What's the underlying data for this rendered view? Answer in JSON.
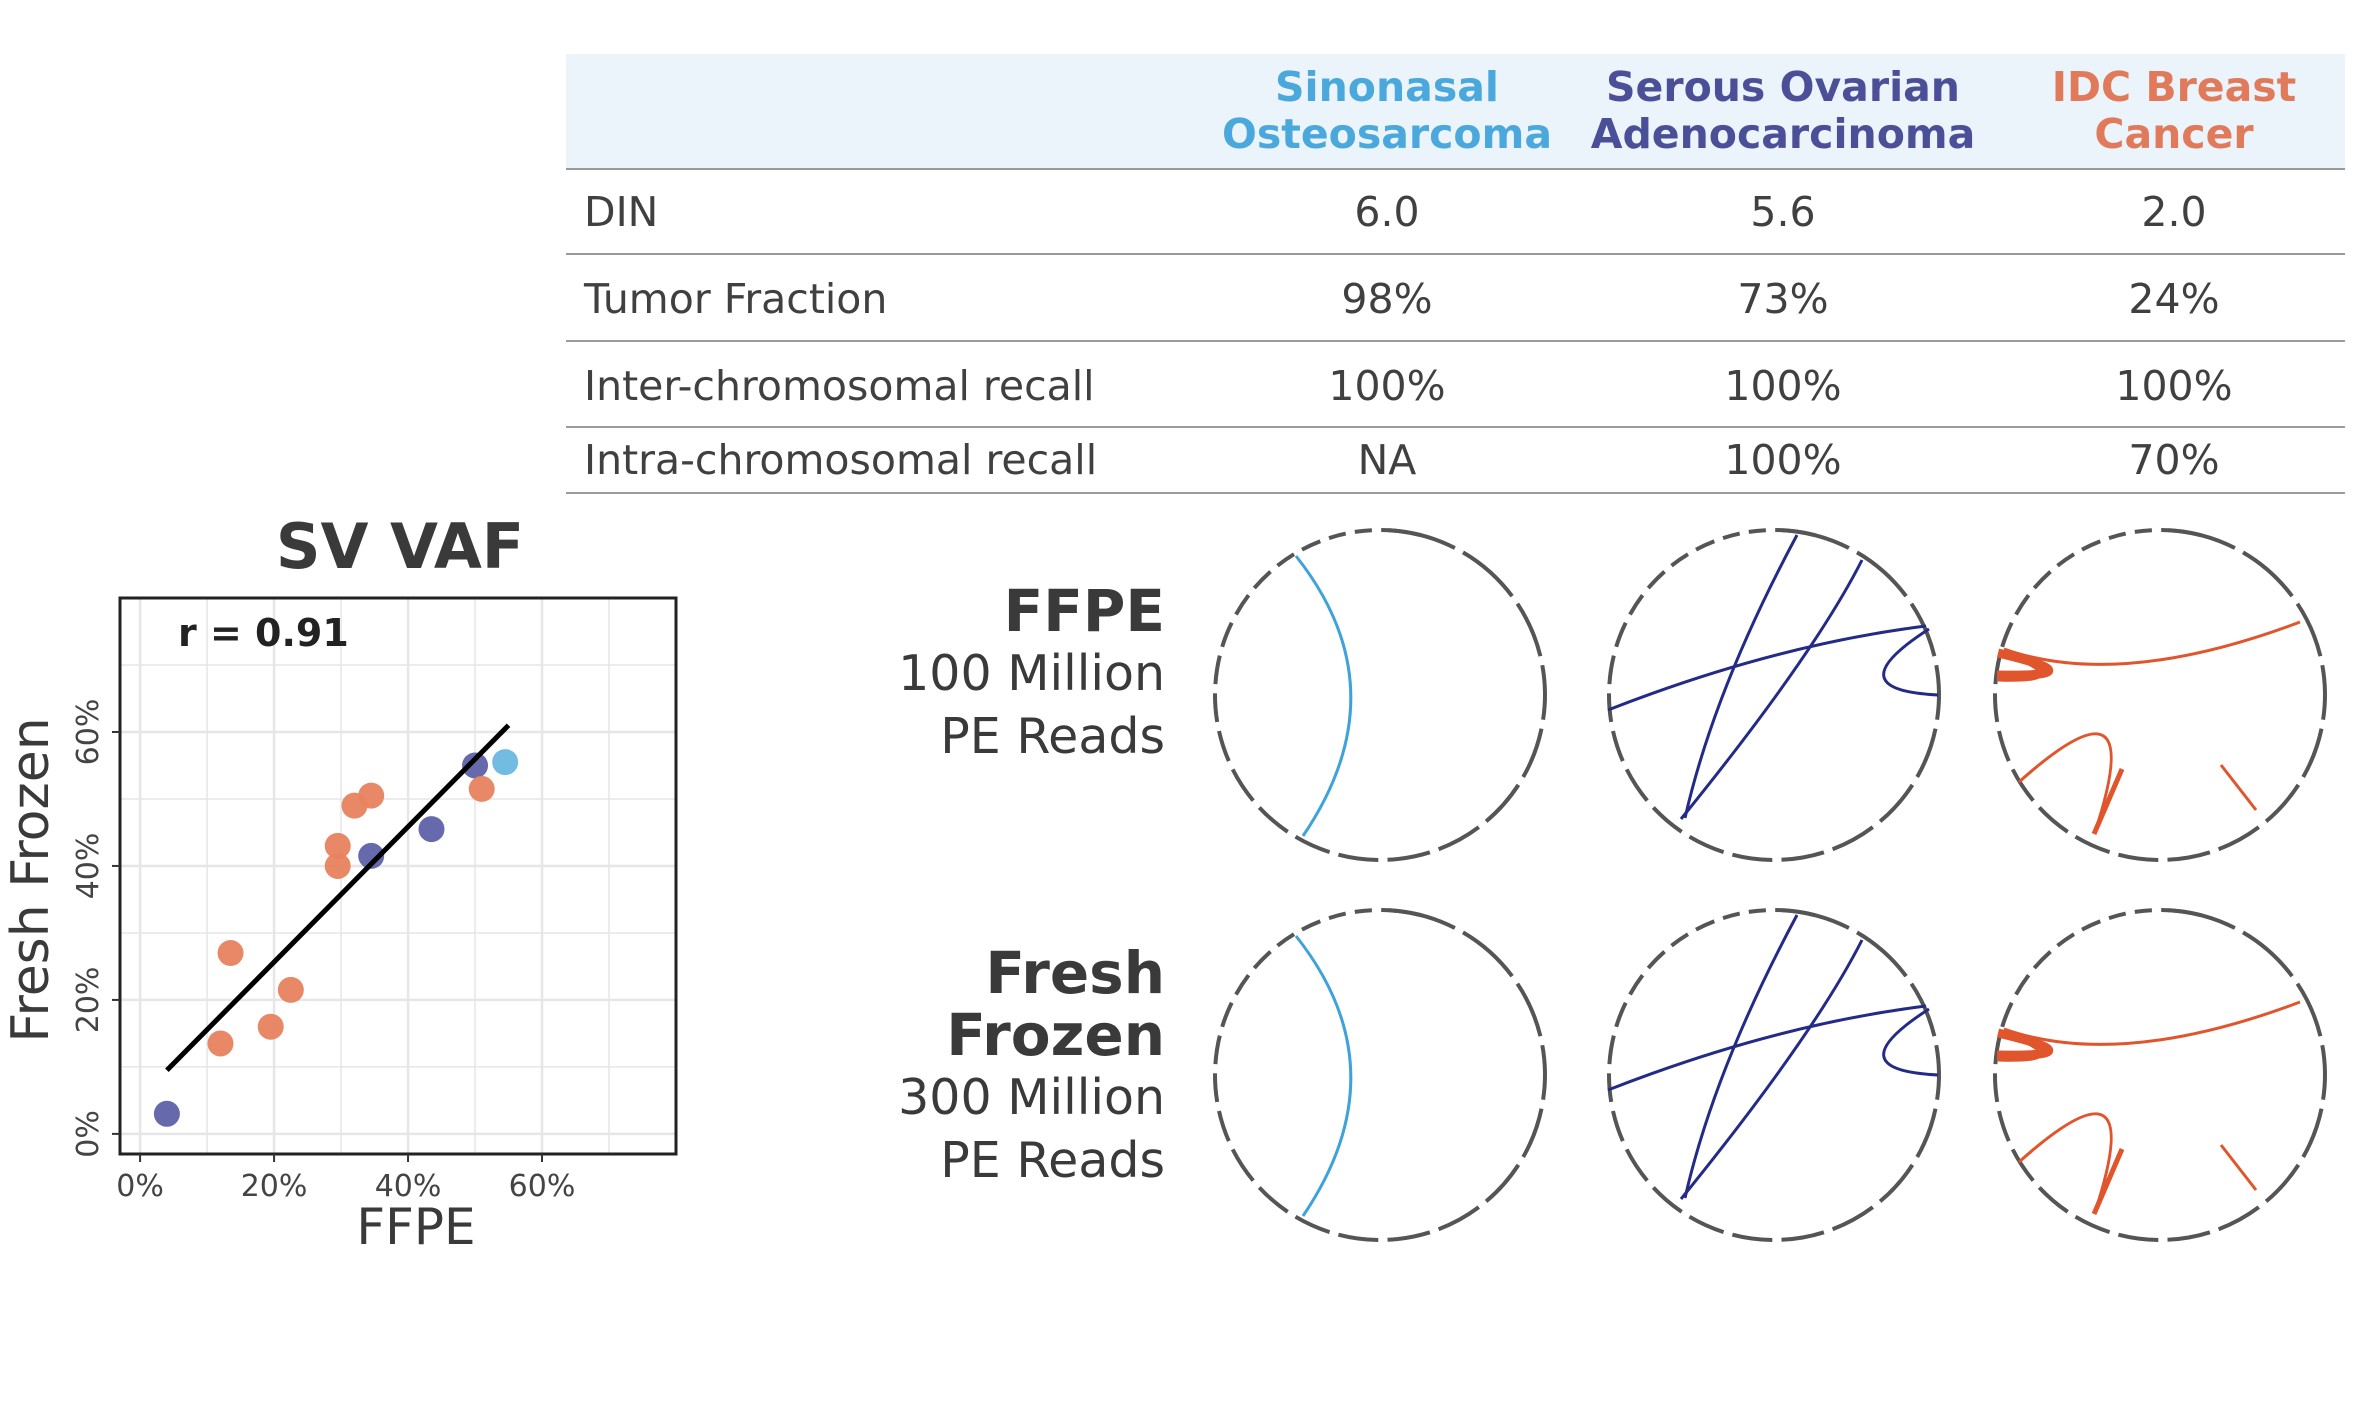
{
  "table": {
    "columns": [
      {
        "line1": "Sinonasal",
        "line2": "Osteosarcoma",
        "color": "#4aa8dc"
      },
      {
        "line1": "Serous Ovarian",
        "line2": "Adenocarcinoma",
        "color": "#4b4f97"
      },
      {
        "line1": "IDC Breast",
        "line2": "Cancer",
        "color": "#e07a5a"
      }
    ],
    "rows": [
      {
        "label": "DIN",
        "values": [
          "6.0",
          "5.6",
          "2.0"
        ]
      },
      {
        "label": "Tumor Fraction",
        "values": [
          "98%",
          "73%",
          "24%"
        ]
      },
      {
        "label": "Inter-chromosomal recall",
        "values": [
          "100%",
          "100%",
          "100%"
        ]
      },
      {
        "label": "Intra-chromosomal recall",
        "values": [
          "NA",
          "100%",
          "70%"
        ]
      }
    ]
  },
  "chart_data": {
    "type": "scatter",
    "title": "SV VAF",
    "xlabel": "FFPE",
    "ylabel": "Fresh Frozen",
    "annotation": "r = 0.91",
    "xlim": [
      -3,
      80
    ],
    "ylim": [
      -3,
      80
    ],
    "xticks": [
      0,
      20,
      40,
      60
    ],
    "yticks": [
      0,
      20,
      40,
      60
    ],
    "tick_format": "%",
    "grid": true,
    "series": [
      {
        "name": "Sinonasal Osteosarcoma",
        "color": "#6ab8e0",
        "points": [
          [
            54.5,
            55.5
          ]
        ]
      },
      {
        "name": "Serous Ovarian Adenocarcinoma",
        "color": "#5e62a8",
        "points": [
          [
            4,
            3
          ],
          [
            34.5,
            41.5
          ],
          [
            43.5,
            45.5
          ],
          [
            50,
            55
          ]
        ]
      },
      {
        "name": "IDC Breast Cancer",
        "color": "#e8825f",
        "points": [
          [
            12,
            13.5
          ],
          [
            13.5,
            27
          ],
          [
            19.5,
            16
          ],
          [
            22.5,
            21.5
          ],
          [
            29.5,
            40
          ],
          [
            29.5,
            43
          ],
          [
            32,
            49
          ],
          [
            34.5,
            50.5
          ],
          [
            51,
            51.5
          ]
        ]
      }
    ],
    "fit_line": {
      "x": [
        4,
        55
      ],
      "y": [
        9.5,
        61
      ],
      "color": "#000000"
    }
  },
  "panels": {
    "ffpe": {
      "title": "FFPE",
      "line1": "100 Million",
      "line2": "PE Reads"
    },
    "fresh": {
      "title1": "Fresh",
      "title2": "Frozen",
      "line1": "300 Million",
      "line2": "PE Reads"
    }
  },
  "circos_colors": [
    "#3fa2da",
    "#232b86",
    "#e0552c"
  ]
}
